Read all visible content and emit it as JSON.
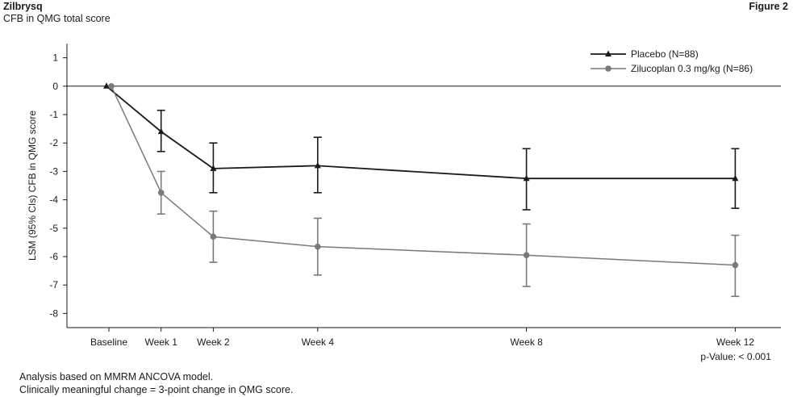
{
  "header": {
    "brand": "Zilbrysq",
    "subtitle": "CFB in QMG total score",
    "figure_label": "Figure 2"
  },
  "footnotes": [
    "Analysis based on MMRM ANCOVA model.",
    "Clinically meaningful change = 3-point change in QMG score."
  ],
  "colors": {
    "placebo": "#1a1a1a",
    "zilucoplan": "#7a7a7a",
    "axis": "#1a1a1a"
  },
  "chart_data": {
    "type": "line",
    "title": "",
    "xlabel": "",
    "ylabel": "LSM (95% CIs) CFB in QMG score",
    "x_scale": "weeks",
    "ylim": [
      -8.5,
      1.5
    ],
    "yticks": [
      1,
      0,
      -1,
      -2,
      -3,
      -4,
      -5,
      -6,
      -7,
      -8
    ],
    "reference_line": 0,
    "legend_position": "top-right",
    "grid": false,
    "x": [
      0,
      1,
      2,
      4,
      8,
      12
    ],
    "categories": [
      "Baseline",
      "Week 1",
      "Week 2",
      "Week 4",
      "Week 8",
      "Week 12"
    ],
    "series": [
      {
        "name": "Placebo (N=88)",
        "marker": "triangle",
        "color": "#1a1a1a",
        "values": [
          0,
          -1.6,
          -2.9,
          -2.8,
          -3.25,
          -3.25
        ],
        "ci_lower": [
          null,
          -2.3,
          -3.75,
          -3.75,
          -4.35,
          -4.3
        ],
        "ci_upper": [
          null,
          -0.85,
          -2.0,
          -1.8,
          -2.2,
          -2.2
        ]
      },
      {
        "name": "Zilucoplan 0.3 mg/kg (N=86)",
        "marker": "circle",
        "color": "#7a7a7a",
        "values": [
          0,
          -3.75,
          -5.3,
          -5.65,
          -5.95,
          -6.3
        ],
        "ci_lower": [
          null,
          -4.5,
          -6.2,
          -6.65,
          -7.05,
          -7.4
        ],
        "ci_upper": [
          null,
          -3.0,
          -4.4,
          -4.65,
          -4.85,
          -5.25
        ]
      }
    ],
    "annotations": [
      "p-Value: < 0.001"
    ]
  }
}
